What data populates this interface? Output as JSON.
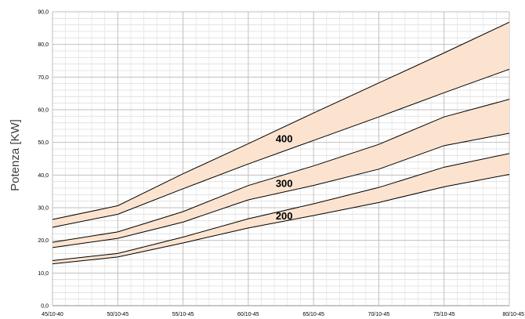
{
  "chart_data": {
    "type": "area",
    "title": "",
    "xlabel": "",
    "ylabel": "Potenza [KW]",
    "categories": [
      "45/10-40",
      "50/10-45",
      "55/10-45",
      "60/10-45",
      "65/10-45",
      "70/10-45",
      "75/10-45",
      "80/10-45"
    ],
    "y_ticks": [
      "0,0",
      "10,0",
      "20,0",
      "30,0",
      "40,0",
      "50,0",
      "60,0",
      "70,0",
      "80,0",
      "90,0"
    ],
    "ylim": [
      0,
      90
    ],
    "y_major_step": 10,
    "y_minor_step": 2,
    "grid": true,
    "band_fill_color": "#fbe3cf",
    "line_color": "#000000",
    "bands": [
      {
        "label": "200",
        "lower": [
          12.8,
          14.9,
          19.2,
          23.8,
          27.6,
          31.6,
          36.4,
          40.2
        ],
        "upper": [
          13.8,
          16.0,
          21.0,
          26.6,
          31.2,
          36.2,
          42.4,
          46.6
        ]
      },
      {
        "label": "300",
        "lower": [
          17.8,
          20.6,
          25.6,
          32.4,
          36.8,
          41.8,
          49.0,
          52.8
        ],
        "upper": [
          19.4,
          22.6,
          28.8,
          36.8,
          42.8,
          49.4,
          57.8,
          63.2
        ]
      },
      {
        "label": "400",
        "lower": [
          24.0,
          28.0,
          35.8,
          43.4,
          50.6,
          57.8,
          65.2,
          72.4
        ],
        "upper": [
          26.4,
          30.6,
          40.4,
          49.6,
          59.0,
          68.2,
          77.4,
          86.8
        ]
      }
    ]
  }
}
